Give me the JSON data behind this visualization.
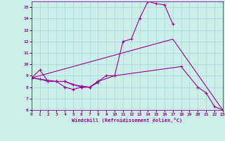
{
  "xlabel": "Windchill (Refroidissement éolien,°C)",
  "bg_color": "#cceee8",
  "grid_color": "#aaddda",
  "line_color": "#990099",
  "xlim": [
    0,
    23
  ],
  "ylim": [
    6,
    15.5
  ],
  "xticks": [
    0,
    1,
    2,
    3,
    4,
    5,
    6,
    7,
    8,
    9,
    10,
    11,
    12,
    13,
    14,
    15,
    16,
    17,
    18,
    19,
    20,
    21,
    22,
    23
  ],
  "yticks": [
    6,
    7,
    8,
    9,
    10,
    11,
    12,
    13,
    14,
    15
  ],
  "lines": [
    {
      "x": [
        0,
        1,
        2,
        3,
        4,
        5,
        6,
        7,
        8,
        10,
        11,
        12,
        13,
        14,
        15,
        16,
        17
      ],
      "y": [
        8.8,
        9.5,
        8.5,
        8.5,
        8.0,
        7.8,
        8.0,
        8.0,
        8.5,
        9.0,
        12.0,
        12.2,
        14.0,
        15.5,
        15.3,
        15.2,
        13.5
      ],
      "marker": true
    },
    {
      "x": [
        0,
        1,
        2,
        3,
        4,
        6,
        7,
        8,
        9,
        10,
        18,
        20,
        21,
        22,
        23
      ],
      "y": [
        8.8,
        8.7,
        8.5,
        8.5,
        8.5,
        8.0,
        8.0,
        8.5,
        9.0,
        9.0,
        9.8,
        8.0,
        7.5,
        6.3,
        6.0
      ],
      "marker": true
    },
    {
      "x": [
        0,
        3,
        4,
        5,
        6,
        7,
        8
      ],
      "y": [
        8.8,
        8.5,
        8.5,
        8.2,
        8.1,
        8.0,
        8.4
      ],
      "marker": true
    },
    {
      "x": [
        0,
        17,
        23
      ],
      "y": [
        8.8,
        12.2,
        6.0
      ],
      "marker": false
    }
  ]
}
